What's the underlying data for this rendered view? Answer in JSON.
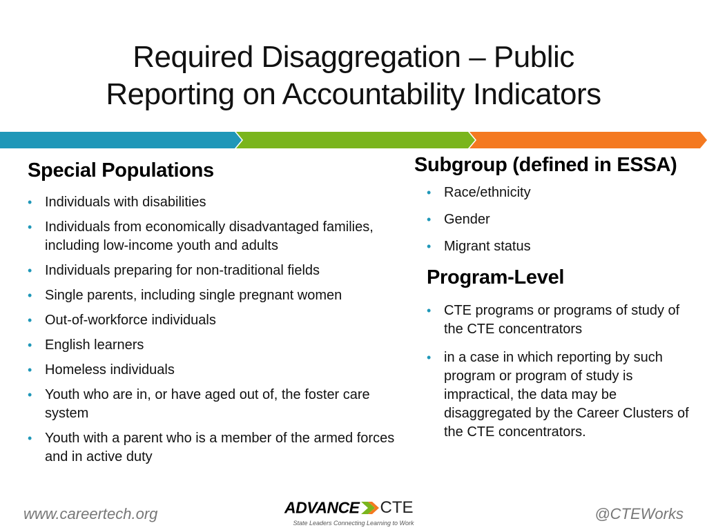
{
  "slide": {
    "title_line1": "Required Disaggregation – Public",
    "title_line2": "Reporting on Accountability Indicators"
  },
  "colors": {
    "ribbon_teal": "#1f97b8",
    "ribbon_green": "#7ab51d",
    "ribbon_orange": "#f47920",
    "bullet": "#1f97b8"
  },
  "special_populations": {
    "heading": "Special Populations",
    "items": [
      "Individuals with disabilities",
      "Individuals from economically disadvantaged families, including low-income youth and adults",
      "Individuals preparing for non-traditional fields",
      "Single parents, including single pregnant women",
      "Out-of-workforce individuals",
      "English learners",
      "Homeless individuals",
      "Youth who are in, or have aged out of, the foster care system",
      "Youth with a parent who is a member of the armed forces and in active duty"
    ]
  },
  "subgroup": {
    "heading": "Subgroup (defined in ESSA)",
    "items": [
      "Race/ethnicity",
      "Gender",
      "Migrant status"
    ]
  },
  "program_level": {
    "heading": "Program-Level",
    "items": [
      "CTE programs or programs of study of the CTE concentrators",
      "in a case in which reporting by such program or program of study is impractical, the data may be disaggregated by the Career Clusters of the CTE concentrators."
    ]
  },
  "footer": {
    "website": "www.careertech.org",
    "handle": "@CTEWorks",
    "logo_word": "ADVANCE",
    "logo_suffix": "CTE",
    "logo_tagline": "State Leaders Connecting Learning to Work"
  }
}
